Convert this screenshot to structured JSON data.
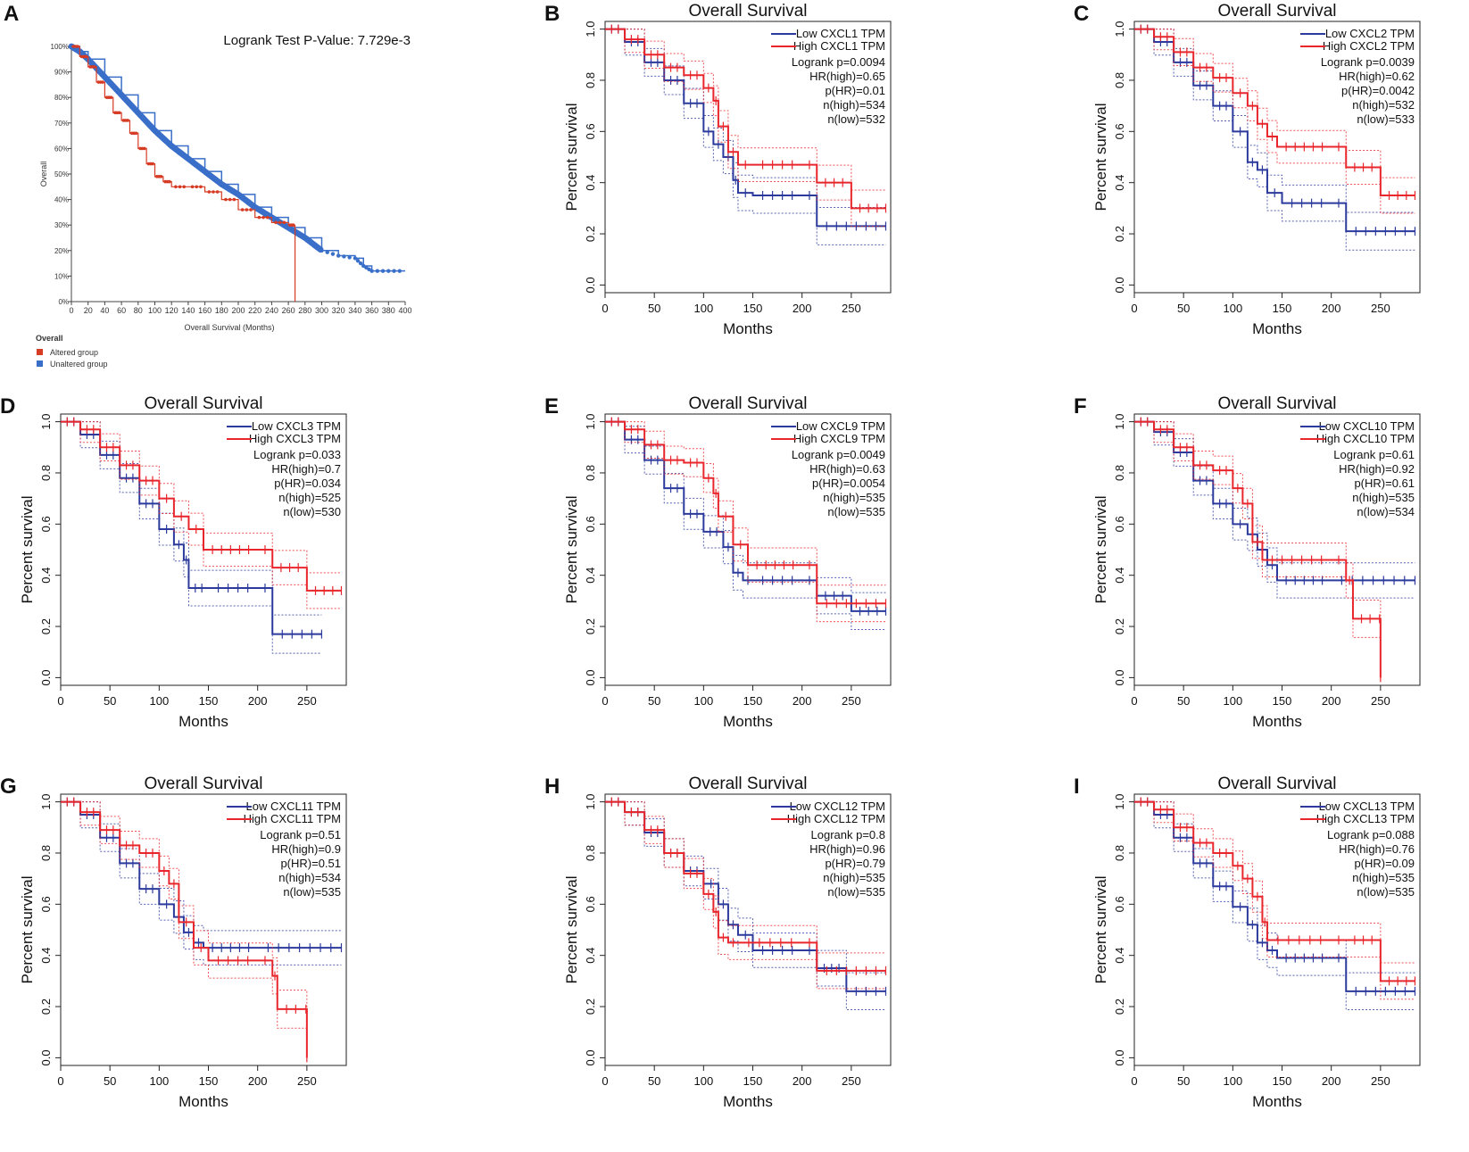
{
  "colors": {
    "low": "#2b3a9c",
    "high": "#e8262c",
    "altered": "#d63b24",
    "unaltered": "#3a6fc9",
    "axis": "#222222"
  },
  "chart_data": [
    {
      "id": "A",
      "type": "line",
      "letter": "A",
      "annotation": "Logrank Test P-Value: 7.729e-3",
      "ylabel": "Overall",
      "xlabel": "Overall Survival (Months)",
      "xlim": [
        0,
        400
      ],
      "ylim": [
        0,
        100
      ],
      "xticks": [
        0,
        20,
        40,
        60,
        80,
        100,
        120,
        140,
        160,
        180,
        200,
        220,
        240,
        260,
        280,
        300,
        320,
        340,
        360,
        380,
        400
      ],
      "yticks": [
        0,
        10,
        20,
        30,
        40,
        50,
        60,
        70,
        80,
        90,
        100
      ],
      "ytick_labels": [
        "0%",
        "10%",
        "20%",
        "30%",
        "40%",
        "50%",
        "60%",
        "70%",
        "80%",
        "90%",
        "100%"
      ],
      "legend": {
        "title": "Overall",
        "entries": [
          "Altered group",
          "Unaltered group"
        ]
      },
      "series": [
        {
          "name": "Altered group",
          "color": "altered",
          "x": [
            0,
            10,
            20,
            30,
            40,
            50,
            60,
            70,
            80,
            90,
            100,
            110,
            120,
            140,
            160,
            180,
            200,
            220,
            240,
            260,
            268
          ],
          "y": [
            100,
            96,
            92,
            86,
            80,
            74,
            71,
            66,
            60,
            54,
            49,
            47,
            45,
            45,
            43,
            40,
            36,
            33,
            31,
            30,
            30
          ],
          "drop_at": 268
        },
        {
          "name": "Unaltered group",
          "color": "unaltered",
          "x": [
            0,
            10,
            20,
            40,
            60,
            80,
            100,
            120,
            140,
            160,
            180,
            200,
            220,
            240,
            260,
            280,
            300,
            320,
            340,
            350,
            360,
            380,
            400
          ],
          "y": [
            100,
            98,
            95,
            88,
            81,
            74,
            67,
            61,
            56,
            51,
            46,
            42,
            37,
            33,
            29,
            25,
            20,
            18,
            17,
            14,
            12,
            12,
            12
          ]
        }
      ]
    },
    {
      "id": "B",
      "letter": "B",
      "type": "line",
      "title": "Overall Survival",
      "xlabel": "Months",
      "ylabel": "Percent survival",
      "xlim": [
        0,
        290
      ],
      "ylim": [
        0,
        1
      ],
      "xticks": [
        0,
        50,
        100,
        150,
        200,
        250
      ],
      "yticks": [
        0.0,
        0.2,
        0.4,
        0.6,
        0.8,
        1.0
      ],
      "legend": [
        "Low CXCL1 TPM",
        "High CXCL1 TPM"
      ],
      "stats": [
        "Logrank p=0.0094",
        "HR(high)=0.65",
        "p(HR)=0.01",
        "n(high)=534",
        "n(low)=532"
      ],
      "series": [
        {
          "name": "Low CXCL1 TPM",
          "color": "low",
          "x": [
            0,
            20,
            40,
            60,
            80,
            100,
            110,
            120,
            130,
            135,
            150,
            200,
            215,
            285
          ],
          "y": [
            1.0,
            0.95,
            0.87,
            0.8,
            0.71,
            0.6,
            0.55,
            0.5,
            0.41,
            0.36,
            0.35,
            0.35,
            0.23,
            0.23
          ]
        },
        {
          "name": "High CXCL1 TPM",
          "color": "high",
          "x": [
            0,
            20,
            40,
            60,
            80,
            100,
            110,
            115,
            125,
            135,
            150,
            200,
            215,
            250,
            285
          ],
          "y": [
            1.0,
            0.96,
            0.9,
            0.85,
            0.82,
            0.77,
            0.72,
            0.62,
            0.52,
            0.47,
            0.47,
            0.47,
            0.4,
            0.3,
            0.3
          ]
        }
      ]
    },
    {
      "id": "C",
      "letter": "C",
      "type": "line",
      "title": "Overall Survival",
      "xlabel": "Months",
      "ylabel": "Percent survival",
      "xlim": [
        0,
        290
      ],
      "ylim": [
        0,
        1
      ],
      "xticks": [
        0,
        50,
        100,
        150,
        200,
        250
      ],
      "yticks": [
        0.0,
        0.2,
        0.4,
        0.6,
        0.8,
        1.0
      ],
      "legend": [
        "Low CXCL2 TPM",
        "High CXCL2 TPM"
      ],
      "stats": [
        "Logrank p=0.0039",
        "HR(high)=0.62",
        "p(HR)=0.0042",
        "n(high)=532",
        "n(low)=533"
      ],
      "series": [
        {
          "name": "Low CXCL2 TPM",
          "color": "low",
          "x": [
            0,
            20,
            40,
            60,
            80,
            100,
            115,
            125,
            135,
            150,
            200,
            215,
            285
          ],
          "y": [
            1.0,
            0.95,
            0.87,
            0.78,
            0.7,
            0.6,
            0.48,
            0.45,
            0.36,
            0.32,
            0.32,
            0.21,
            0.21
          ]
        },
        {
          "name": "High CXCL2 TPM",
          "color": "high",
          "x": [
            0,
            20,
            40,
            60,
            80,
            100,
            115,
            125,
            135,
            145,
            200,
            215,
            250,
            285
          ],
          "y": [
            1.0,
            0.97,
            0.91,
            0.85,
            0.81,
            0.75,
            0.7,
            0.63,
            0.58,
            0.54,
            0.54,
            0.46,
            0.35,
            0.35
          ]
        }
      ]
    },
    {
      "id": "D",
      "letter": "D",
      "type": "line",
      "title": "Overall Survival",
      "xlabel": "Months",
      "ylabel": "Percent survival",
      "xlim": [
        0,
        290
      ],
      "ylim": [
        0,
        1
      ],
      "xticks": [
        0,
        50,
        100,
        150,
        200,
        250
      ],
      "yticks": [
        0.0,
        0.2,
        0.4,
        0.6,
        0.8,
        1.0
      ],
      "legend": [
        "Low CXCL3 TPM",
        "High CXCL3 TPM"
      ],
      "stats": [
        "Logrank p=0.033",
        "HR(high)=0.7",
        "p(HR)=0.034",
        "n(high)=525",
        "n(low)=530"
      ],
      "series": [
        {
          "name": "Low CXCL3 TPM",
          "color": "low",
          "x": [
            0,
            20,
            40,
            60,
            80,
            100,
            115,
            125,
            130,
            150,
            200,
            215,
            265
          ],
          "y": [
            1.0,
            0.95,
            0.87,
            0.78,
            0.68,
            0.58,
            0.52,
            0.46,
            0.35,
            0.35,
            0.35,
            0.17,
            0.17
          ]
        },
        {
          "name": "High CXCL3 TPM",
          "color": "high",
          "x": [
            0,
            20,
            40,
            60,
            80,
            100,
            115,
            130,
            145,
            200,
            215,
            250,
            285
          ],
          "y": [
            1.0,
            0.97,
            0.9,
            0.83,
            0.77,
            0.7,
            0.63,
            0.58,
            0.5,
            0.5,
            0.43,
            0.34,
            0.34
          ]
        }
      ]
    },
    {
      "id": "E",
      "letter": "E",
      "type": "line",
      "title": "Overall Survival",
      "xlabel": "Months",
      "ylabel": "Percent survival",
      "xlim": [
        0,
        290
      ],
      "ylim": [
        0,
        1
      ],
      "xticks": [
        0,
        50,
        100,
        150,
        200,
        250
      ],
      "yticks": [
        0.0,
        0.2,
        0.4,
        0.6,
        0.8,
        1.0
      ],
      "legend": [
        "Low CXCL9 TPM",
        "High CXCL9 TPM"
      ],
      "stats": [
        "Logrank p=0.0049",
        "HR(high)=0.63",
        "p(HR)=0.0054",
        "n(high)=535",
        "n(low)=535"
      ],
      "series": [
        {
          "name": "Low CXCL9 TPM",
          "color": "low",
          "x": [
            0,
            20,
            40,
            60,
            80,
            100,
            120,
            130,
            140,
            150,
            200,
            215,
            250,
            285
          ],
          "y": [
            1.0,
            0.93,
            0.85,
            0.74,
            0.64,
            0.57,
            0.51,
            0.41,
            0.38,
            0.38,
            0.38,
            0.32,
            0.26,
            0.26
          ]
        },
        {
          "name": "High CXCL9 TPM",
          "color": "high",
          "x": [
            0,
            20,
            40,
            60,
            80,
            100,
            110,
            115,
            130,
            145,
            200,
            215,
            285
          ],
          "y": [
            1.0,
            0.97,
            0.91,
            0.85,
            0.84,
            0.78,
            0.72,
            0.63,
            0.52,
            0.44,
            0.44,
            0.29,
            0.29
          ]
        }
      ]
    },
    {
      "id": "F",
      "letter": "F",
      "type": "line",
      "title": "Overall Survival",
      "xlabel": "Months",
      "ylabel": "Percent survival",
      "xlim": [
        0,
        290
      ],
      "ylim": [
        0,
        1
      ],
      "xticks": [
        0,
        50,
        100,
        150,
        200,
        250
      ],
      "yticks": [
        0.0,
        0.2,
        0.4,
        0.6,
        0.8,
        1.0
      ],
      "legend": [
        "Low CXCL10 TPM",
        "High CXCL10 TPM"
      ],
      "stats": [
        "Logrank p=0.61",
        "HR(high)=0.92",
        "p(HR)=0.61",
        "n(high)=535",
        "n(low)=534"
      ],
      "series": [
        {
          "name": "Low CXCL10 TPM",
          "color": "low",
          "x": [
            0,
            20,
            40,
            60,
            80,
            100,
            115,
            125,
            135,
            145,
            200,
            285
          ],
          "y": [
            1.0,
            0.96,
            0.88,
            0.77,
            0.68,
            0.6,
            0.56,
            0.5,
            0.44,
            0.38,
            0.38,
            0.38
          ]
        },
        {
          "name": "High CXCL10 TPM",
          "color": "high",
          "x": [
            0,
            20,
            40,
            60,
            80,
            100,
            110,
            120,
            130,
            200,
            215,
            222,
            248,
            250
          ],
          "y": [
            1.0,
            0.97,
            0.9,
            0.83,
            0.81,
            0.74,
            0.68,
            0.53,
            0.46,
            0.46,
            0.38,
            0.23,
            0.23,
            0.0
          ]
        }
      ]
    },
    {
      "id": "G",
      "letter": "G",
      "type": "line",
      "title": "Overall Survival",
      "xlabel": "Months",
      "ylabel": "Percent survival",
      "xlim": [
        0,
        290
      ],
      "ylim": [
        0,
        1
      ],
      "xticks": [
        0,
        50,
        100,
        150,
        200,
        250
      ],
      "yticks": [
        0.0,
        0.2,
        0.4,
        0.6,
        0.8,
        1.0
      ],
      "legend": [
        "Low CXCL11 TPM",
        "High CXCL11 TPM"
      ],
      "stats": [
        "Logrank p=0.51",
        "HR(high)=0.9",
        "p(HR)=0.51",
        "n(high)=534",
        "n(low)=535"
      ],
      "series": [
        {
          "name": "Low CXCL11 TPM",
          "color": "low",
          "x": [
            0,
            20,
            40,
            60,
            80,
            100,
            115,
            125,
            135,
            145,
            200,
            285
          ],
          "y": [
            1.0,
            0.95,
            0.86,
            0.76,
            0.66,
            0.6,
            0.55,
            0.49,
            0.45,
            0.43,
            0.43,
            0.43
          ]
        },
        {
          "name": "High CXCL11 TPM",
          "color": "high",
          "x": [
            0,
            20,
            40,
            60,
            80,
            100,
            110,
            120,
            135,
            150,
            200,
            215,
            220,
            248,
            250
          ],
          "y": [
            1.0,
            0.96,
            0.89,
            0.83,
            0.8,
            0.73,
            0.68,
            0.53,
            0.43,
            0.38,
            0.38,
            0.32,
            0.19,
            0.19,
            0.0
          ]
        }
      ]
    },
    {
      "id": "H",
      "letter": "H",
      "type": "line",
      "title": "Overall Survival",
      "xlabel": "Months",
      "ylabel": "Percent survival",
      "xlim": [
        0,
        290
      ],
      "ylim": [
        0,
        1
      ],
      "xticks": [
        0,
        50,
        100,
        150,
        200,
        250
      ],
      "yticks": [
        0.0,
        0.2,
        0.4,
        0.6,
        0.8,
        1.0
      ],
      "legend": [
        "Low CXCL12 TPM",
        "High CXCL12 TPM"
      ],
      "stats": [
        "Logrank p=0.8",
        "HR(high)=0.96",
        "p(HR)=0.79",
        "n(high)=535",
        "n(low)=535"
      ],
      "series": [
        {
          "name": "Low CXCL12 TPM",
          "color": "low",
          "x": [
            0,
            20,
            40,
            60,
            80,
            100,
            115,
            125,
            135,
            150,
            200,
            215,
            245,
            285
          ],
          "y": [
            1.0,
            0.96,
            0.88,
            0.8,
            0.73,
            0.68,
            0.6,
            0.52,
            0.48,
            0.42,
            0.42,
            0.35,
            0.26,
            0.26
          ]
        },
        {
          "name": "High CXCL12 TPM",
          "color": "high",
          "x": [
            0,
            20,
            40,
            60,
            80,
            100,
            110,
            115,
            125,
            135,
            200,
            215,
            285
          ],
          "y": [
            1.0,
            0.96,
            0.89,
            0.8,
            0.72,
            0.64,
            0.57,
            0.47,
            0.45,
            0.45,
            0.45,
            0.34,
            0.34
          ]
        }
      ]
    },
    {
      "id": "I",
      "letter": "I",
      "type": "line",
      "title": "Overall Survival",
      "xlabel": "Months",
      "ylabel": "Percent survival",
      "xlim": [
        0,
        290
      ],
      "ylim": [
        0,
        1
      ],
      "xticks": [
        0,
        50,
        100,
        150,
        200,
        250
      ],
      "yticks": [
        0.0,
        0.2,
        0.4,
        0.6,
        0.8,
        1.0
      ],
      "legend": [
        "Low CXCL13 TPM",
        "High CXCL13 TPM"
      ],
      "stats": [
        "Logrank p=0.088",
        "HR(high)=0.76",
        "p(HR)=0.09",
        "n(high)=535",
        "n(low)=535"
      ],
      "series": [
        {
          "name": "Low CXCL13 TPM",
          "color": "low",
          "x": [
            0,
            20,
            40,
            60,
            80,
            100,
            115,
            125,
            135,
            145,
            200,
            215,
            285
          ],
          "y": [
            1.0,
            0.95,
            0.86,
            0.76,
            0.67,
            0.59,
            0.52,
            0.45,
            0.42,
            0.39,
            0.39,
            0.26,
            0.26
          ]
        },
        {
          "name": "High CXCL13 TPM",
          "color": "high",
          "x": [
            0,
            20,
            40,
            60,
            80,
            100,
            110,
            120,
            130,
            135,
            200,
            215,
            250,
            285
          ],
          "y": [
            1.0,
            0.97,
            0.9,
            0.84,
            0.8,
            0.75,
            0.7,
            0.63,
            0.53,
            0.46,
            0.46,
            0.46,
            0.3,
            0.3
          ]
        }
      ]
    }
  ]
}
